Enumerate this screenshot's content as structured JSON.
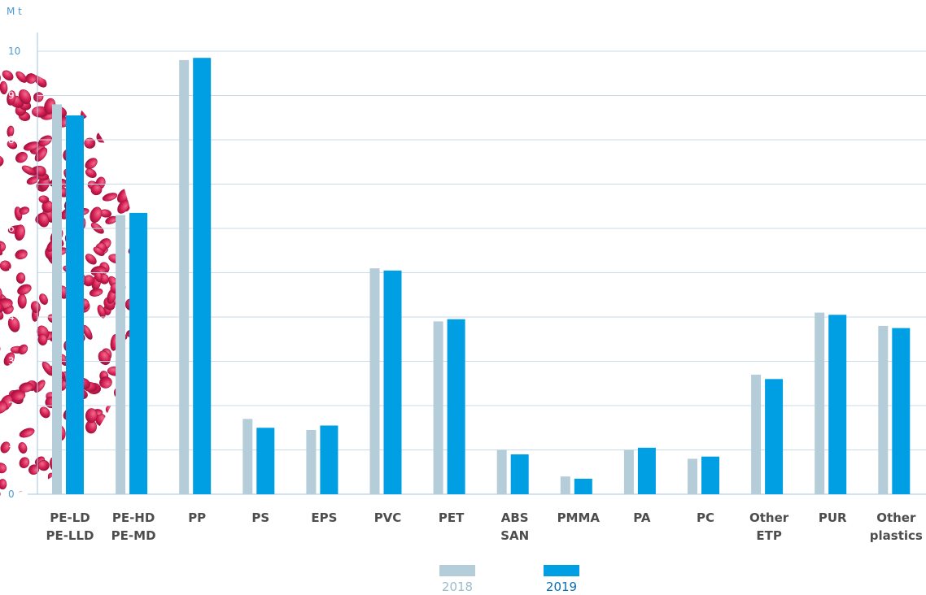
{
  "chart_data": {
    "type": "bar",
    "ylabel": "M t",
    "ylim": [
      0,
      10
    ],
    "yticks": [
      "0",
      "1",
      "2",
      "3",
      "4",
      "5",
      "6",
      "7",
      "8",
      "9",
      "10"
    ],
    "grid": true,
    "legend_position": "bottom-center",
    "categories": [
      [
        "PE-LD",
        "PE-LLD"
      ],
      [
        "PE-HD",
        "PE-MD"
      ],
      [
        "PP"
      ],
      [
        "PS"
      ],
      [
        "EPS"
      ],
      [
        "PVC"
      ],
      [
        "PET"
      ],
      [
        "ABS",
        "SAN"
      ],
      [
        "PMMA"
      ],
      [
        "PA"
      ],
      [
        "PC"
      ],
      [
        "Other",
        "ETP"
      ],
      [
        "PUR"
      ],
      [
        "Other",
        "plastics"
      ]
    ],
    "series": [
      {
        "name": "2018",
        "color": "#b5cdd9",
        "values": [
          8.8,
          6.3,
          9.8,
          1.7,
          1.45,
          5.1,
          3.9,
          1.0,
          0.4,
          1.0,
          0.8,
          2.7,
          4.1,
          3.8
        ]
      },
      {
        "name": "2019",
        "color": "#009fe3",
        "values": [
          8.55,
          6.35,
          9.85,
          1.5,
          1.55,
          5.05,
          3.95,
          0.9,
          0.35,
          1.05,
          0.85,
          2.6,
          4.05,
          3.75
        ]
      }
    ]
  },
  "colors": {
    "grid": "#c9dbea",
    "axis": "#a7c6e0",
    "decoration": "#d51f55"
  }
}
